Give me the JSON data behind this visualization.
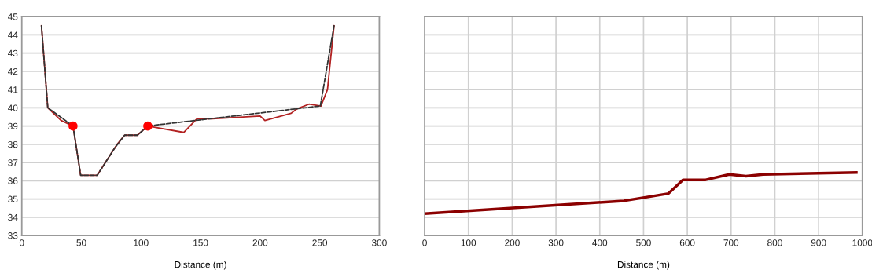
{
  "chart_data": [
    {
      "type": "line",
      "xlabel": "Distance (m)",
      "xlim": [
        0,
        300
      ],
      "xticks": [
        0,
        50,
        100,
        150,
        200,
        250,
        300
      ],
      "ylim": [
        33,
        45
      ],
      "yticks": [
        33,
        34,
        35,
        36,
        37,
        38,
        39,
        40,
        41,
        42,
        43,
        44,
        45
      ],
      "grid": "y",
      "series": [
        {
          "color": "#b22222",
          "line_style": "solid",
          "x": [
            16.5,
            17,
            21.8,
            33,
            43,
            49.4,
            63.3,
            80,
            86.3,
            97,
            105.7,
            114,
            136,
            147,
            160,
            200,
            204,
            226,
            231,
            241,
            251,
            256.5,
            262
          ],
          "values": [
            44.5,
            44.1,
            40.0,
            39.3,
            39.0,
            36.3,
            36.3,
            38.0,
            38.5,
            38.5,
            39.0,
            38.9,
            38.65,
            39.4,
            39.4,
            39.55,
            39.3,
            39.7,
            39.95,
            40.2,
            40.1,
            41.0,
            44.5
          ]
        },
        {
          "color": "#333333",
          "line_style": "dashed",
          "x": [
            16.5,
            21.8,
            43,
            49.4,
            63.3,
            78,
            86.3,
            97,
            105.7,
            250.5,
            262
          ],
          "values": [
            44.5,
            40.0,
            39.0,
            36.3,
            36.3,
            37.8,
            38.5,
            38.5,
            39.0,
            40.1,
            44.5
          ]
        },
        {
          "type": "scatter",
          "color": "#ff0000",
          "marker": "circle",
          "x": [
            43,
            105.7
          ],
          "values": [
            39.0,
            39.0
          ]
        }
      ]
    },
    {
      "type": "line",
      "xlabel": "Distance (m)",
      "xlim": [
        0,
        1000
      ],
      "xticks": [
        0,
        100,
        200,
        300,
        400,
        500,
        600,
        700,
        800,
        900,
        1000
      ],
      "ylim": [
        33,
        45
      ],
      "yticks": [
        33,
        34,
        35,
        36,
        37,
        38,
        39,
        40,
        41,
        42,
        43,
        44,
        45
      ],
      "grid": true,
      "tick_labels": "x",
      "series": [
        {
          "color": "#8b0000",
          "line_style": "solid",
          "x": [
            0,
            455,
            557,
            590,
            642,
            696,
            734,
            773,
            986
          ],
          "values": [
            34.2,
            34.9,
            35.3,
            36.05,
            36.05,
            36.35,
            36.25,
            36.35,
            36.45
          ]
        }
      ]
    }
  ]
}
